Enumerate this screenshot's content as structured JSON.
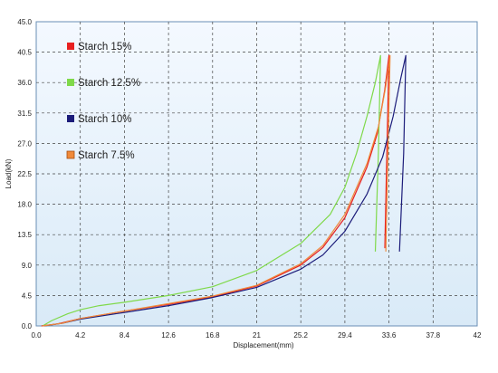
{
  "chart_data": {
    "type": "line",
    "xlabel": "Displacement(mm)",
    "ylabel": "Load(kN)",
    "xlim": [
      0,
      42
    ],
    "ylim": [
      0,
      45
    ],
    "x_ticks": [
      "0.0",
      "4.2",
      "8.4",
      "12.6",
      "16.8",
      "21",
      "25.2",
      "29.4",
      "33.6",
      "37.8",
      "42"
    ],
    "y_ticks": [
      "0.0",
      "4.5",
      "9.0",
      "13.5",
      "18.0",
      "22.5",
      "27.0",
      "31.5",
      "36.0",
      "40.5",
      "45.0"
    ],
    "grid": true,
    "legend_position": "left",
    "series": [
      {
        "name": "Starch 15%",
        "color": "#e82020",
        "points": [
          [
            0.5,
            0
          ],
          [
            2,
            0.3
          ],
          [
            4.2,
            1.1
          ],
          [
            8.4,
            2.2
          ],
          [
            12.6,
            3.2
          ],
          [
            16.8,
            4.3
          ],
          [
            21,
            5.9
          ],
          [
            25.2,
            9.0
          ],
          [
            27.3,
            11.6
          ],
          [
            29.4,
            16.0
          ],
          [
            31.5,
            23.5
          ],
          [
            32.5,
            28.5
          ],
          [
            33.2,
            35.0
          ],
          [
            33.6,
            40.0
          ],
          [
            33.4,
            26.0
          ],
          [
            33.2,
            11.5
          ]
        ]
      },
      {
        "name": "Starch 12.5%",
        "color": "#7fd94a",
        "points": [
          [
            0.6,
            0
          ],
          [
            1.5,
            0.8
          ],
          [
            3,
            1.8
          ],
          [
            4.2,
            2.4
          ],
          [
            6,
            3.0
          ],
          [
            8.4,
            3.5
          ],
          [
            12.6,
            4.5
          ],
          [
            16.8,
            5.8
          ],
          [
            21,
            8.2
          ],
          [
            25.2,
            12.2
          ],
          [
            28,
            16.5
          ],
          [
            29.4,
            20.5
          ],
          [
            30.5,
            25.5
          ],
          [
            31.5,
            31.0
          ],
          [
            32.3,
            36.0
          ],
          [
            32.8,
            40.0
          ],
          [
            32.6,
            26.0
          ],
          [
            32.3,
            11.0
          ]
        ]
      },
      {
        "name": "Starch 10%",
        "color": "#1c1c7a",
        "points": [
          [
            0.7,
            0
          ],
          [
            2.5,
            0.4
          ],
          [
            4.2,
            1.0
          ],
          [
            8.4,
            2.0
          ],
          [
            12.6,
            3.0
          ],
          [
            16.8,
            4.2
          ],
          [
            21,
            5.7
          ],
          [
            25.2,
            8.4
          ],
          [
            27.3,
            10.5
          ],
          [
            29.4,
            14.0
          ],
          [
            31.5,
            19.5
          ],
          [
            33.0,
            25.0
          ],
          [
            34.0,
            31.0
          ],
          [
            34.7,
            36.5
          ],
          [
            35.2,
            40.0
          ],
          [
            35.0,
            25.5
          ],
          [
            34.6,
            11.0
          ]
        ]
      },
      {
        "name": "Starch 7.5%",
        "color": "#f08a3a",
        "points": [
          [
            0.6,
            0
          ],
          [
            2.5,
            0.4
          ],
          [
            4.2,
            1.1
          ],
          [
            8.4,
            2.2
          ],
          [
            12.6,
            3.3
          ],
          [
            16.8,
            4.4
          ],
          [
            21,
            6.0
          ],
          [
            25.2,
            9.2
          ],
          [
            27.3,
            11.9
          ],
          [
            29.4,
            16.5
          ],
          [
            31.5,
            24.0
          ],
          [
            32.6,
            29.5
          ],
          [
            33.3,
            35.5
          ],
          [
            33.7,
            40.0
          ],
          [
            33.5,
            25.5
          ],
          [
            33.3,
            11.0
          ]
        ]
      }
    ]
  }
}
